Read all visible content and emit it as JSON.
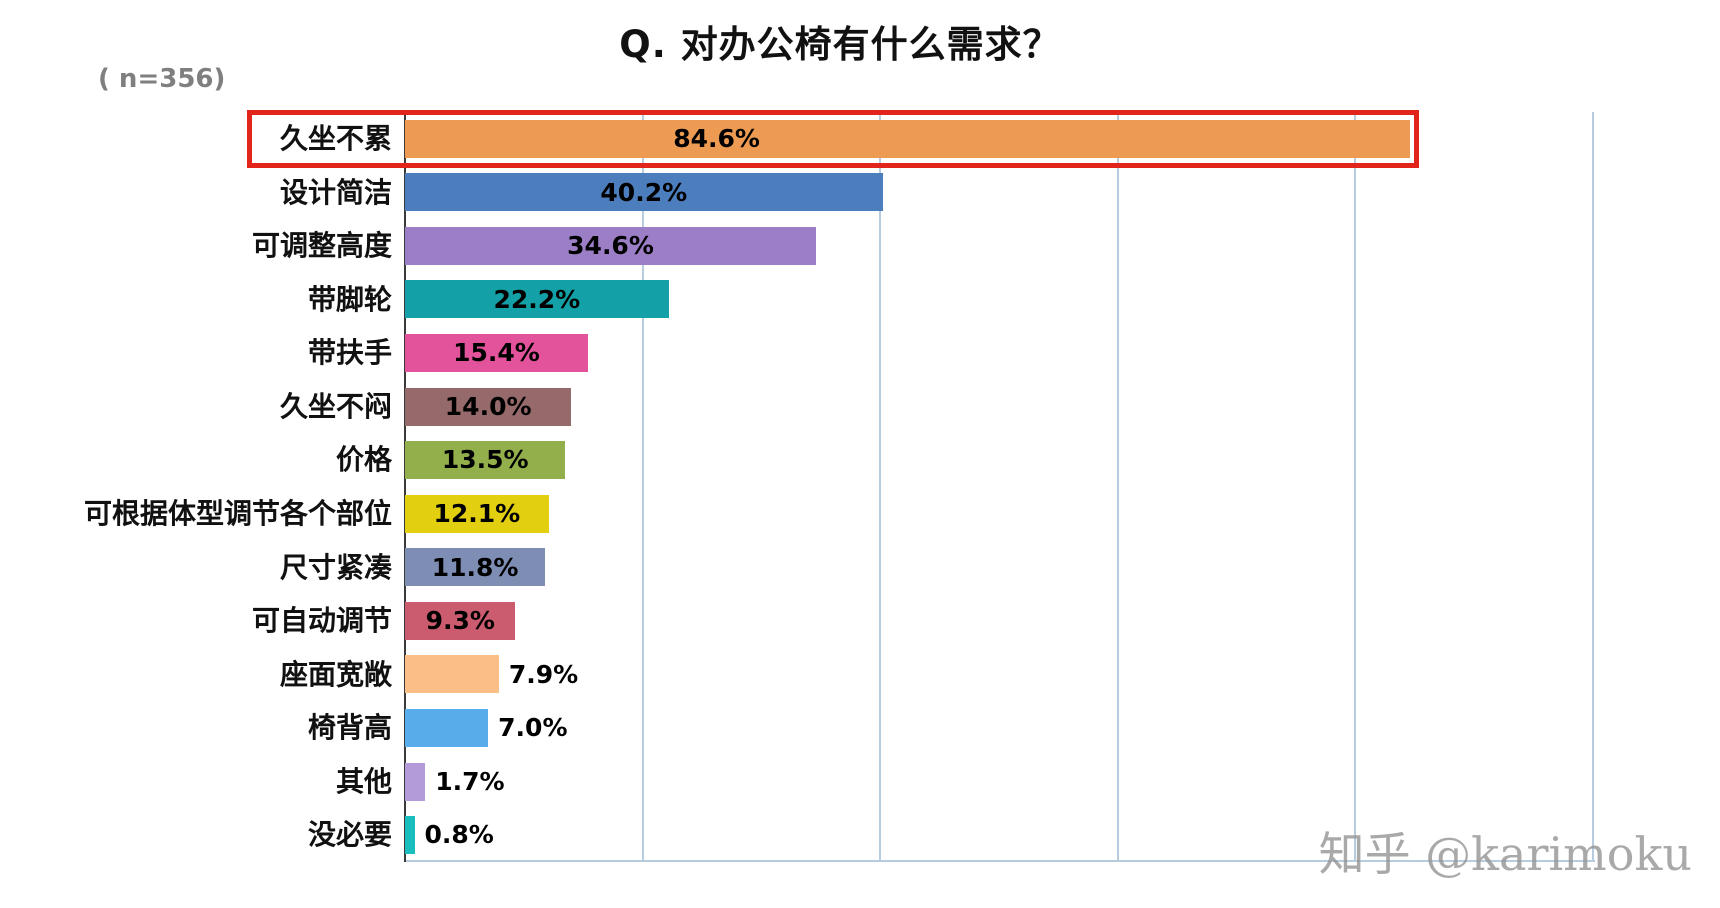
{
  "title": "Q. 对办公椅有什么需求？",
  "sample_note": "( n=356)",
  "watermark": "知乎 @karimoku",
  "chart_data": {
    "type": "bar",
    "orientation": "horizontal",
    "title": "Q. 对办公椅有什么需求？",
    "sample_size": 356,
    "categories": [
      "久坐不累",
      "设计简洁",
      "可调整高度",
      "带脚轮",
      "带扶手",
      "久坐不闷",
      "价格",
      "可根据体型调节各个部位",
      "尺寸紧凑",
      "可自动调节",
      "座面宽敞",
      "椅背高",
      "其他",
      "没必要"
    ],
    "values": [
      84.6,
      40.2,
      34.6,
      22.2,
      15.4,
      14.0,
      13.5,
      12.1,
      11.8,
      9.3,
      7.9,
      7.0,
      1.7,
      0.8
    ],
    "value_labels": [
      "84.6%",
      "40.2%",
      "34.6%",
      "22.2%",
      "15.4%",
      "14.0%",
      "13.5%",
      "12.1%",
      "11.8%",
      "9.3%",
      "7.9%",
      "7.0%",
      "1.7%",
      "0.8%"
    ],
    "bar_colors": [
      "#ED9B53",
      "#4C7EBE",
      "#9B7EC6",
      "#13A0A6",
      "#E2539B",
      "#966A6B",
      "#92AF4B",
      "#E2CF10",
      "#7E8DB4",
      "#CB5B6E",
      "#FBBE86",
      "#57ACE9",
      "#B29BD8",
      "#1ABEBF"
    ],
    "xlabel": "",
    "ylabel": "",
    "xlim": [
      0,
      100
    ],
    "gridline_step": 20,
    "grid": true,
    "legend": false,
    "grid_color": "#B7CCDE",
    "axis_color": "#3a3a3a",
    "highlight_index": 0,
    "highlight_color": "#E1251B",
    "inside_label_threshold": 9
  }
}
